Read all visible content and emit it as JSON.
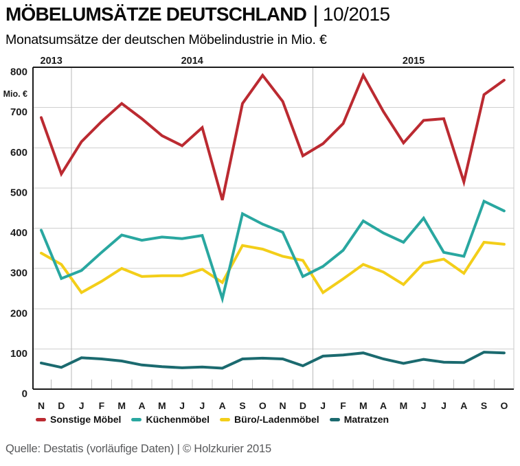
{
  "header": {
    "title_main": "MÖBELUMSÄTZE DEUTSCHLAND",
    "title_separator": "|",
    "title_period": "10/2015",
    "subtitle": "Monatsumsätze der deutschen Möbelindustrie in Mio. €"
  },
  "footer": {
    "source": "Quelle: Destatis (vorläufige Daten) | © Holzkurier 2015"
  },
  "chart_data": {
    "type": "line",
    "title": "Monatsumsätze der deutschen Möbelindustrie in Mio. €",
    "xlabel": "",
    "ylabel": "Mio. €",
    "unit_label": "Mio. €",
    "grid": "horizontal",
    "legend_position": "bottom",
    "y_axis": {
      "min": 0,
      "max": 800,
      "tick_interval": 100,
      "tick_labels": [
        "0",
        "100",
        "200",
        "300",
        "400",
        "500",
        "600",
        "700",
        "800"
      ]
    },
    "x_tick_labels": [
      "N",
      "D",
      "J",
      "F",
      "M",
      "A",
      "M",
      "J",
      "J",
      "A",
      "S",
      "O",
      "N",
      "D",
      "J",
      "F",
      "M",
      "A",
      "M",
      "J",
      "J",
      "A",
      "S",
      "O"
    ],
    "year_groups": [
      {
        "label": "2013",
        "start_index": 0,
        "end_index": 1
      },
      {
        "label": "2014",
        "start_index": 2,
        "end_index": 13
      },
      {
        "label": "2015",
        "start_index": 14,
        "end_index": 23
      }
    ],
    "series": [
      {
        "id": "sonstige-moebel",
        "name": "Sonstige Möbel",
        "color": "#bb2a31",
        "values": [
          675,
          535,
          615,
          665,
          710,
          672,
          630,
          605,
          650,
          470,
          710,
          780,
          715,
          580,
          610,
          660,
          780,
          690,
          612,
          668,
          672,
          515,
          732,
          768
        ]
      },
      {
        "id": "kuechenmoebel",
        "name": "Küchenmöbel",
        "color": "#29a7a0",
        "values": [
          395,
          275,
          295,
          340,
          383,
          370,
          378,
          374,
          382,
          225,
          436,
          410,
          390,
          280,
          305,
          345,
          418,
          388,
          365,
          425,
          340,
          330,
          467,
          443
        ]
      },
      {
        "id": "buero-ladenmoebel",
        "name": "Büro/-Ladenmöbel",
        "color": "#f3ce19",
        "values": [
          338,
          310,
          240,
          268,
          300,
          280,
          282,
          282,
          298,
          265,
          357,
          348,
          330,
          320,
          240,
          274,
          310,
          291,
          260,
          313,
          323,
          288,
          365,
          360
        ]
      },
      {
        "id": "matratzen",
        "name": "Matratzen",
        "color": "#1b6a6f",
        "values": [
          65,
          54,
          78,
          75,
          70,
          60,
          56,
          53,
          55,
          52,
          75,
          77,
          75,
          58,
          82,
          85,
          90,
          75,
          64,
          74,
          67,
          66,
          92,
          90
        ]
      }
    ],
    "colors": {
      "grid_line": "#cfcfcf",
      "year_line": "#b9b9b9",
      "tick_mark": "#b9b9b9",
      "axis_dark": "#1a1a1a",
      "right_border": "#c9c9c9",
      "label_text": "#1a1a1a"
    }
  }
}
